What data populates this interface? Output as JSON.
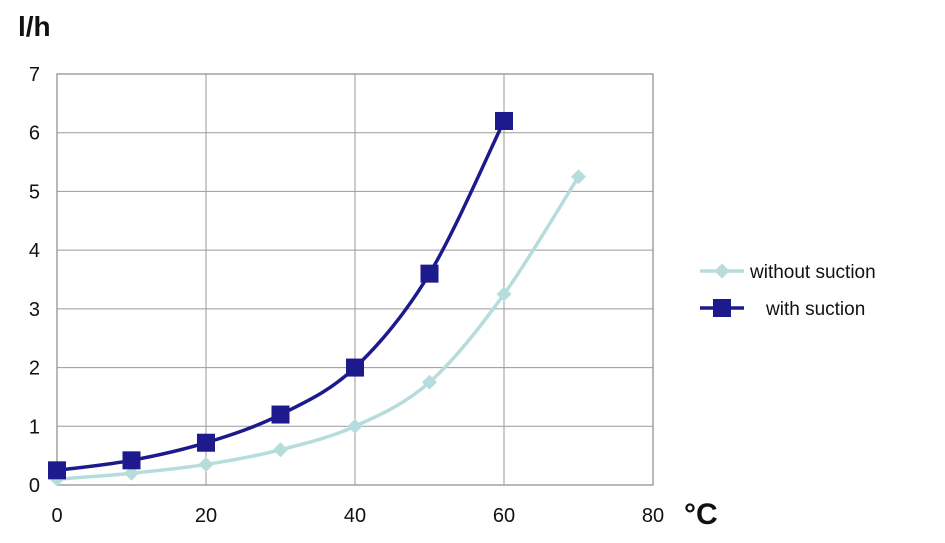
{
  "chart_data": {
    "type": "line",
    "ylabel": "l/h",
    "xlabel": "°C",
    "xlim": [
      0,
      80
    ],
    "ylim": [
      0,
      7
    ],
    "x_ticks": [
      0,
      20,
      40,
      60,
      80
    ],
    "y_ticks": [
      0,
      1,
      2,
      3,
      4,
      5,
      6,
      7
    ],
    "grid": true,
    "legend_position": "right",
    "series": [
      {
        "name": "without suction",
        "marker": "diamond",
        "color": "#b7dcdc",
        "x": [
          0,
          10,
          20,
          30,
          40,
          50,
          60,
          70
        ],
        "values": [
          0.1,
          0.2,
          0.35,
          0.6,
          1.0,
          1.75,
          3.25,
          5.25
        ]
      },
      {
        "name": "with suction",
        "marker": "square",
        "color": "#1c1a8c",
        "x": [
          0,
          10,
          20,
          30,
          40,
          50,
          60
        ],
        "values": [
          0.25,
          0.42,
          0.72,
          1.2,
          2.0,
          3.6,
          6.2
        ]
      }
    ]
  }
}
